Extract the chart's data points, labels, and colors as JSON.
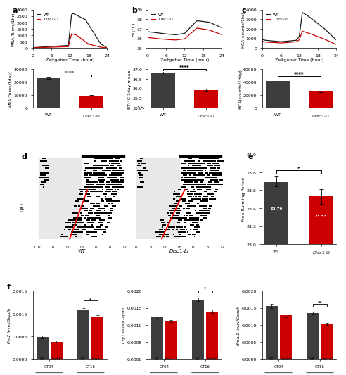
{
  "colors": {
    "wt": "#1a1a1a",
    "disc1": "#cc0000",
    "bar_wt": "#3d3d3d",
    "bar_disc1": "#cc0000"
  },
  "panel_a": {
    "ylabel_line": "WRA(Turns/1hr)",
    "ylabel_bar": "WRA(Turns/1day)",
    "xlabel": "Zeitgeber Time (hour)",
    "ylim_line": [
      0,
      3000
    ],
    "yticks_line": [
      0,
      500,
      1000,
      1500,
      2000,
      2500,
      3000
    ],
    "ylim_bar": [
      0,
      30000
    ],
    "yticks_bar": [
      0,
      10000,
      20000,
      30000
    ],
    "bar_wt": 23000,
    "bar_disc1": 9500,
    "bar_err_wt": 600,
    "bar_err_disc1": 400,
    "sig_text": "****"
  },
  "panel_b": {
    "ylabel_line": "BT(°C)",
    "ylabel_bar": "BT(°C 1day mean)",
    "xlabel": "Zeitgeber Time (hour)",
    "ylim_line": [
      35.0,
      39.0
    ],
    "yticks_line": [
      35,
      36,
      37,
      38,
      39
    ],
    "ylim_bar": [
      35.0,
      37.0
    ],
    "yticks_bar": [
      35.0,
      35.5,
      36.0,
      36.5,
      37.0
    ],
    "bar_wt": 36.8,
    "bar_disc1": 35.9,
    "bar_bottom": 35.0,
    "bar_err_wt": 0.07,
    "bar_err_disc1": 0.07,
    "sig_text": "****"
  },
  "panel_c": {
    "ylabel_line": "HCA(counts/1hr)",
    "ylabel_bar": "HCA(counts/1day)",
    "xlabel": "Zeitgeber Time (hour)",
    "ylim_line": [
      0,
      4000
    ],
    "yticks_line": [
      0,
      1000,
      2000,
      3000,
      4000
    ],
    "ylim_bar": [
      0,
      60000
    ],
    "yticks_bar": [
      0,
      20000,
      40000,
      60000
    ],
    "bar_wt": 42000,
    "bar_disc1": 25000,
    "bar_err_wt": 1500,
    "bar_err_disc1": 1200,
    "sig_text": "****"
  },
  "panel_e": {
    "ylabel": "Free-Running Period",
    "bar_wt": 23.7,
    "bar_disc1": 23.53,
    "bar_bottom": 23.0,
    "bar_err_wt": 0.06,
    "bar_err_disc1": 0.08,
    "ylim": [
      23.0,
      24.0
    ],
    "yticks": [
      23.0,
      23.2,
      23.4,
      23.6,
      23.8,
      24.0
    ],
    "sig_text": "*",
    "label_wt": "23.70",
    "label_disc1": "23.53"
  },
  "panel_f_per2": {
    "ylabel": "Per2 level/Gapdh",
    "ylim": [
      0.0,
      0.0015
    ],
    "yticks": [
      0.0,
      0.0005,
      0.001,
      0.0015
    ],
    "ct04_wt": 0.00048,
    "ct04_disc1": 0.00038,
    "ct16_wt": 0.00108,
    "ct16_disc1": 0.00093,
    "ct04_wt_err": 3e-05,
    "ct04_disc1_err": 2.5e-05,
    "ct16_wt_err": 4e-05,
    "ct16_disc1_err": 3.5e-05,
    "sig_text": "*"
  },
  "panel_f_cry1": {
    "ylabel": "Cry1 level/Gapdh",
    "ylim": [
      0.0,
      0.002
    ],
    "yticks": [
      0.0,
      0.0005,
      0.001,
      0.0015,
      0.002
    ],
    "ct04_wt": 0.00122,
    "ct04_disc1": 0.00112,
    "ct16_wt": 0.00175,
    "ct16_disc1": 0.0014,
    "ct04_wt_err": 3.5e-05,
    "ct04_disc1_err": 3e-05,
    "ct16_wt_err": 5.5e-05,
    "ct16_disc1_err": 4.5e-05,
    "sig_text": "*"
  },
  "panel_f_bmal1": {
    "ylabel": "Bmal1 level/Gapdh",
    "ylim": [
      0.0,
      0.002
    ],
    "yticks": [
      0.0,
      0.0005,
      0.001,
      0.0015,
      0.002
    ],
    "ct04_wt": 0.00155,
    "ct04_disc1": 0.00128,
    "ct16_wt": 0.00135,
    "ct16_disc1": 0.00103,
    "ct04_wt_err": 6e-05,
    "ct04_disc1_err": 4.5e-05,
    "ct16_wt_err": 5e-05,
    "ct16_disc1_err": 4e-05,
    "sig_text": "**"
  }
}
